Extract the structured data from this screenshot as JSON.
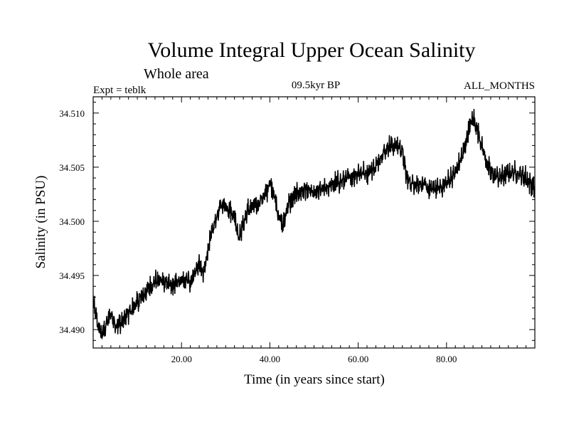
{
  "chart_data": {
    "type": "line",
    "title": "Volume Integral Upper Ocean Salinity",
    "subtitle": "Whole area",
    "experiment": "Expt = teblk",
    "period": "09.5kyr BP",
    "months": "ALL_MONTHS",
    "xlabel": "Time (in years since start)",
    "ylabel": "Salinity (in PSU)",
    "xlim": [
      0,
      100
    ],
    "ylim": [
      34.4883,
      34.5115
    ],
    "x_ticks": [
      20,
      40,
      60,
      80
    ],
    "x_tick_labels": [
      "20.00",
      "40.00",
      "60.00",
      "80.00"
    ],
    "y_ticks": [
      34.49,
      34.495,
      34.5,
      34.505,
      34.51
    ],
    "y_tick_labels": [
      "34.490",
      "34.495",
      "34.500",
      "34.505",
      "34.510"
    ],
    "grid": false,
    "series": [
      {
        "name": "Salinity",
        "color": "#000000",
        "sample_step_years": 0.0833,
        "anchor_x": [
          0,
          1,
          2,
          3,
          4,
          5,
          6,
          8,
          10,
          12,
          14,
          16,
          18,
          20,
          22,
          24,
          25,
          26,
          27,
          28,
          29,
          30,
          31,
          32,
          33,
          35,
          37,
          39,
          40,
          41,
          42,
          43,
          44,
          46,
          48,
          50,
          52,
          55,
          58,
          60,
          62,
          64,
          65,
          66,
          67,
          68,
          69,
          70,
          71,
          72,
          74,
          76,
          78,
          80,
          82,
          83,
          84,
          85,
          86,
          87,
          88,
          89,
          90,
          92,
          94,
          96,
          98,
          100
        ],
        "anchor_y": [
          34.4925,
          34.4905,
          34.4895,
          34.4905,
          34.4915,
          34.4905,
          34.4905,
          34.4915,
          34.4925,
          34.4935,
          34.4945,
          34.4945,
          34.494,
          34.4945,
          34.4945,
          34.496,
          34.495,
          34.4975,
          34.499,
          34.5005,
          34.5015,
          34.5015,
          34.501,
          34.5005,
          34.4985,
          34.501,
          34.5015,
          34.5025,
          34.5035,
          34.5025,
          34.5005,
          34.4995,
          34.5015,
          34.5025,
          34.503,
          34.5025,
          34.503,
          34.5035,
          34.504,
          34.5045,
          34.5045,
          34.505,
          34.506,
          34.5065,
          34.507,
          34.507,
          34.507,
          34.5065,
          34.504,
          34.5035,
          34.5035,
          34.503,
          34.503,
          34.5035,
          34.5045,
          34.5055,
          34.5065,
          34.5085,
          34.5095,
          34.5085,
          34.507,
          34.5055,
          34.5045,
          34.504,
          34.5045,
          34.5045,
          34.504,
          34.503
        ],
        "noise_amplitude": 0.0011
      }
    ]
  }
}
